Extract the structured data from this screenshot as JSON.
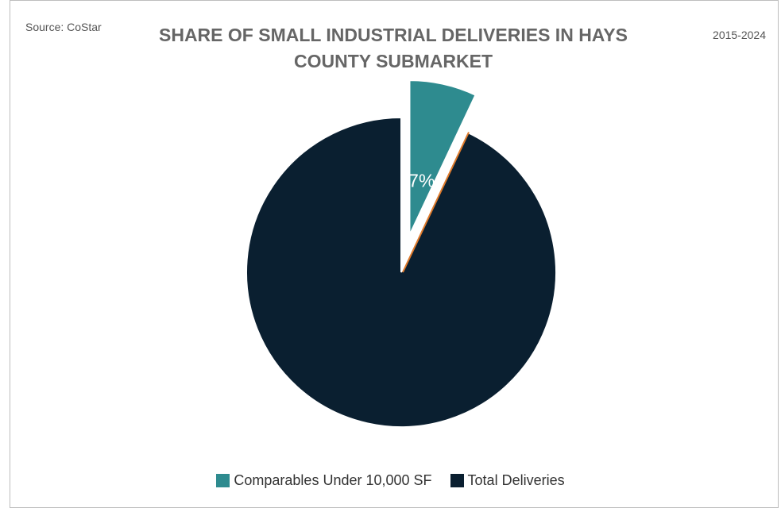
{
  "source_note": "Source: CoStar",
  "period": "2015-2024",
  "chart_data": {
    "type": "pie",
    "title": "SHARE OF SMALL INDUSTRIAL DELIVERIES IN HAYS COUNTY SUBMARKET",
    "slices": [
      {
        "name": "Comparables Under 10,000 SF",
        "value": 7,
        "label": "7%",
        "color": "#2e8b8f",
        "exploded": true
      },
      {
        "name": "Total Deliveries",
        "value": 93,
        "label": "",
        "color": "#0a1f30",
        "exploded": false
      }
    ],
    "legend": {
      "position": "bottom"
    }
  }
}
